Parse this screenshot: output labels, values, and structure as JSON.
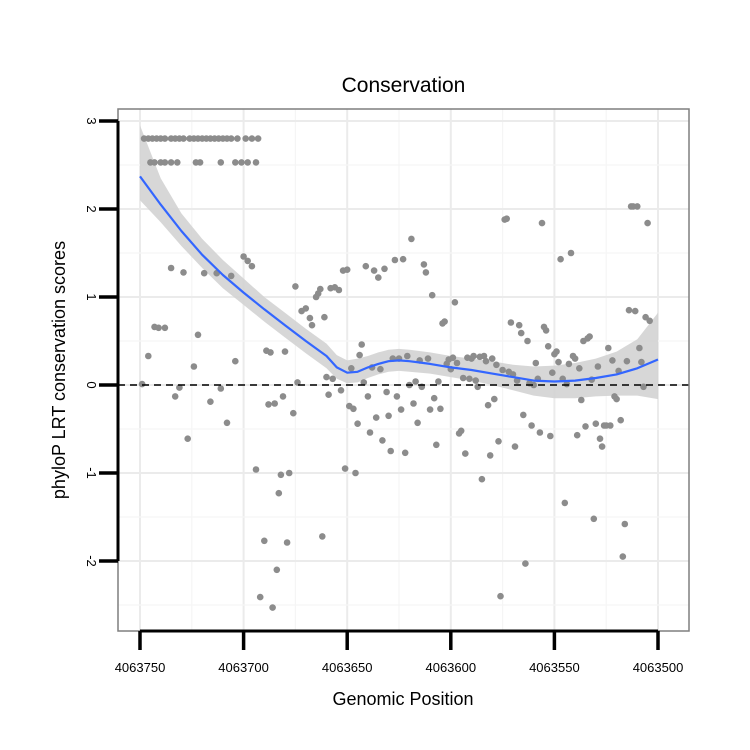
{
  "chart_data": {
    "type": "scatter",
    "title": "Conservation",
    "xlabel": "Genomic Position",
    "ylabel": "phyloP LRT conservation scores",
    "x_reversed": true,
    "xlim": [
      4063500,
      4063750
    ],
    "ylim": [
      -2.6,
      3.1
    ],
    "grid": true,
    "x_ticks": [
      4063750,
      4063700,
      4063650,
      4063600,
      4063550,
      4063500
    ],
    "x_tick_labels": [
      "4063750",
      "4063700",
      "4063650",
      "4063600",
      "4063550",
      "4063500"
    ],
    "y_ticks": [
      3,
      2,
      1,
      0,
      -1,
      -2
    ],
    "y_tick_labels": [
      "3",
      "2",
      "1",
      "0",
      "-1",
      "-2"
    ],
    "reference_line": {
      "y": 0,
      "style": "dashed"
    },
    "colors": {
      "points": "#8c8c8c",
      "smooth": "#3366ff",
      "ribbon": "#d3d3d3",
      "panel_border": "#7f7f7f",
      "grid": "#ebebeb"
    },
    "series": [
      {
        "name": "scores",
        "points": [
          [
            4063748,
            2.8
          ],
          [
            4063746,
            2.8
          ],
          [
            4063744,
            2.8
          ],
          [
            4063742,
            2.8
          ],
          [
            4063740,
            2.8
          ],
          [
            4063738,
            2.8
          ],
          [
            4063735,
            2.8
          ],
          [
            4063733,
            2.8
          ],
          [
            4063731,
            2.8
          ],
          [
            4063729,
            2.8
          ],
          [
            4063726,
            2.8
          ],
          [
            4063724,
            2.8
          ],
          [
            4063722,
            2.8
          ],
          [
            4063720,
            2.8
          ],
          [
            4063718,
            2.8
          ],
          [
            4063716,
            2.8
          ],
          [
            4063714,
            2.8
          ],
          [
            4063712,
            2.8
          ],
          [
            4063710,
            2.8
          ],
          [
            4063708,
            2.8
          ],
          [
            4063706,
            2.8
          ],
          [
            4063703,
            2.8
          ],
          [
            4063699,
            2.8
          ],
          [
            4063696,
            2.8
          ],
          [
            4063693,
            2.8
          ],
          [
            4063745,
            2.53
          ],
          [
            4063743,
            2.53
          ],
          [
            4063740,
            2.53
          ],
          [
            4063738,
            2.53
          ],
          [
            4063735,
            2.53
          ],
          [
            4063732,
            2.53
          ],
          [
            4063723,
            2.53
          ],
          [
            4063721,
            2.53
          ],
          [
            4063711,
            2.53
          ],
          [
            4063704,
            2.53
          ],
          [
            4063701,
            2.53
          ],
          [
            4063698,
            2.53
          ],
          [
            4063694,
            2.53
          ],
          [
            4063749,
            0.01
          ],
          [
            4063746,
            0.33
          ],
          [
            4063743,
            0.66
          ],
          [
            4063741,
            0.65
          ],
          [
            4063738,
            0.65
          ],
          [
            4063735,
            1.33
          ],
          [
            4063733,
            -0.13
          ],
          [
            4063731,
            -0.03
          ],
          [
            4063729,
            1.28
          ],
          [
            4063727,
            -0.61
          ],
          [
            4063724,
            0.21
          ],
          [
            4063722,
            0.57
          ],
          [
            4063719,
            1.27
          ],
          [
            4063716,
            -0.19
          ],
          [
            4063713,
            1.27
          ],
          [
            4063711,
            -0.04
          ],
          [
            4063708,
            -0.43
          ],
          [
            4063706,
            1.24
          ],
          [
            4063704,
            0.27
          ],
          [
            4063700,
            1.46
          ],
          [
            4063698,
            1.41
          ],
          [
            4063696,
            1.35
          ],
          [
            4063694,
            -0.96
          ],
          [
            4063692,
            -2.41
          ],
          [
            4063690,
            -1.77
          ],
          [
            4063689,
            0.39
          ],
          [
            4063688,
            -0.22
          ],
          [
            4063687,
            0.37
          ],
          [
            4063686,
            -2.53
          ],
          [
            4063685,
            -0.21
          ],
          [
            4063684,
            -2.1
          ],
          [
            4063683,
            -1.23
          ],
          [
            4063682,
            -1.02
          ],
          [
            4063681,
            -0.13
          ],
          [
            4063680,
            0.38
          ],
          [
            4063679,
            -1.79
          ],
          [
            4063678,
            -1.0
          ],
          [
            4063676,
            -0.32
          ],
          [
            4063675,
            1.12
          ],
          [
            4063674,
            0.03
          ],
          [
            4063672,
            0.84
          ],
          [
            4063670,
            0.87
          ],
          [
            4063668,
            0.76
          ],
          [
            4063667,
            0.68
          ],
          [
            4063665,
            1.0
          ],
          [
            4063664,
            1.04
          ],
          [
            4063663,
            1.09
          ],
          [
            4063662,
            -1.72
          ],
          [
            4063661,
            0.77
          ],
          [
            4063660,
            0.09
          ],
          [
            4063659,
            -0.11
          ],
          [
            4063658,
            1.1
          ],
          [
            4063657,
            0.07
          ],
          [
            4063656,
            1.11
          ],
          [
            4063654,
            1.08
          ],
          [
            4063653,
            -0.06
          ],
          [
            4063652,
            1.3
          ],
          [
            4063651,
            -0.95
          ],
          [
            4063650,
            1.31
          ],
          [
            4063649,
            -0.24
          ],
          [
            4063648,
            0.19
          ],
          [
            4063647,
            -0.27
          ],
          [
            4063646,
            -1.0
          ],
          [
            4063645,
            -0.44
          ],
          [
            4063644,
            0.34
          ],
          [
            4063643,
            0.46
          ],
          [
            4063642,
            0.03
          ],
          [
            4063641,
            1.35
          ],
          [
            4063640,
            -0.13
          ],
          [
            4063639,
            -0.54
          ],
          [
            4063638,
            0.2
          ],
          [
            4063637,
            1.3
          ],
          [
            4063636,
            -0.37
          ],
          [
            4063635,
            1.22
          ],
          [
            4063634,
            0.18
          ],
          [
            4063633,
            -0.63
          ],
          [
            4063632,
            1.32
          ],
          [
            4063631,
            -0.08
          ],
          [
            4063630,
            -0.35
          ],
          [
            4063629,
            -0.75
          ],
          [
            4063628,
            0.3
          ],
          [
            4063627,
            1.42
          ],
          [
            4063626,
            -0.13
          ],
          [
            4063625,
            0.3
          ],
          [
            4063624,
            -0.28
          ],
          [
            4063623,
            1.43
          ],
          [
            4063622,
            -0.77
          ],
          [
            4063621,
            0.33
          ],
          [
            4063620,
            0.0
          ],
          [
            4063619,
            1.66
          ],
          [
            4063618,
            -0.21
          ],
          [
            4063617,
            0.04
          ],
          [
            4063616,
            -0.43
          ],
          [
            4063615,
            0.28
          ],
          [
            4063614,
            -0.02
          ],
          [
            4063613,
            1.37
          ],
          [
            4063612,
            1.28
          ],
          [
            4063611,
            0.3
          ],
          [
            4063610,
            -0.28
          ],
          [
            4063609,
            1.02
          ],
          [
            4063608,
            -0.15
          ],
          [
            4063607,
            -0.68
          ],
          [
            4063606,
            0.04
          ],
          [
            4063605,
            -0.27
          ],
          [
            4063604,
            0.7
          ],
          [
            4063603,
            0.72
          ],
          [
            4063602,
            0.24
          ],
          [
            4063601,
            0.29
          ],
          [
            4063600,
            0.18
          ],
          [
            4063599,
            0.31
          ],
          [
            4063598,
            0.94
          ],
          [
            4063597,
            0.25
          ],
          [
            4063596,
            -0.55
          ],
          [
            4063595,
            -0.52
          ],
          [
            4063594,
            0.08
          ],
          [
            4063593,
            -0.78
          ],
          [
            4063592,
            0.31
          ],
          [
            4063591,
            0.07
          ],
          [
            4063590,
            0.3
          ],
          [
            4063589,
            0.33
          ],
          [
            4063588,
            0.05
          ],
          [
            4063587,
            -0.02
          ],
          [
            4063586,
            0.32
          ],
          [
            4063585,
            -1.07
          ],
          [
            4063584,
            0.33
          ],
          [
            4063583,
            0.27
          ],
          [
            4063582,
            -0.23
          ],
          [
            4063581,
            -0.8
          ],
          [
            4063580,
            0.3
          ],
          [
            4063579,
            -0.16
          ],
          [
            4063578,
            0.23
          ],
          [
            4063577,
            -0.64
          ],
          [
            4063576,
            -2.4
          ],
          [
            4063575,
            0.17
          ],
          [
            4063574,
            1.88
          ],
          [
            4063573,
            1.89
          ],
          [
            4063572,
            0.15
          ],
          [
            4063571,
            0.71
          ],
          [
            4063570,
            0.12
          ],
          [
            4063569,
            -0.7
          ],
          [
            4063568,
            0.05
          ],
          [
            4063567,
            0.68
          ],
          [
            4063566,
            0.59
          ],
          [
            4063565,
            -0.34
          ],
          [
            4063564,
            -2.03
          ],
          [
            4063563,
            0.5
          ],
          [
            4063562,
            0.02
          ],
          [
            4063561,
            -0.46
          ],
          [
            4063560,
            0.0
          ],
          [
            4063559,
            0.25
          ],
          [
            4063558,
            0.07
          ],
          [
            4063557,
            -0.54
          ],
          [
            4063556,
            1.84
          ],
          [
            4063555,
            0.66
          ],
          [
            4063554,
            0.62
          ],
          [
            4063553,
            0.44
          ],
          [
            4063552,
            -0.58
          ],
          [
            4063551,
            0.14
          ],
          [
            4063550,
            0.35
          ],
          [
            4063549,
            0.38
          ],
          [
            4063548,
            0.26
          ],
          [
            4063547,
            1.43
          ],
          [
            4063546,
            0.07
          ],
          [
            4063545,
            -1.34
          ],
          [
            4063544,
            0.01
          ],
          [
            4063543,
            0.24
          ],
          [
            4063542,
            1.5
          ],
          [
            4063541,
            0.33
          ],
          [
            4063540,
            0.3
          ],
          [
            4063539,
            -0.57
          ],
          [
            4063538,
            0.19
          ],
          [
            4063537,
            -0.17
          ],
          [
            4063536,
            0.5
          ],
          [
            4063535,
            -0.47
          ],
          [
            4063534,
            0.53
          ],
          [
            4063533,
            0.55
          ],
          [
            4063532,
            0.06
          ],
          [
            4063531,
            -1.52
          ],
          [
            4063530,
            -0.44
          ],
          [
            4063529,
            0.21
          ],
          [
            4063528,
            -0.61
          ],
          [
            4063527,
            -0.7
          ],
          [
            4063526,
            -0.46
          ],
          [
            4063525,
            -0.46
          ],
          [
            4063524,
            0.42
          ],
          [
            4063523,
            -0.46
          ],
          [
            4063522,
            0.28
          ],
          [
            4063521,
            -0.13
          ],
          [
            4063520,
            -0.16
          ],
          [
            4063519,
            0.16
          ],
          [
            4063518,
            -0.4
          ],
          [
            4063517,
            -1.95
          ],
          [
            4063516,
            -1.58
          ],
          [
            4063515,
            0.27
          ],
          [
            4063514,
            0.85
          ],
          [
            4063513,
            2.03
          ],
          [
            4063512,
            2.03
          ],
          [
            4063511,
            0.84
          ],
          [
            4063510,
            2.03
          ],
          [
            4063509,
            0.42
          ],
          [
            4063508,
            0.26
          ],
          [
            4063507,
            -0.02
          ],
          [
            4063506,
            0.77
          ],
          [
            4063505,
            1.84
          ],
          [
            4063504,
            0.73
          ]
        ]
      }
    ],
    "smooth": {
      "method": "loess",
      "x": [
        4063750,
        4063740,
        4063730,
        4063720,
        4063710,
        4063700,
        4063690,
        4063680,
        4063670,
        4063660,
        4063655,
        4063650,
        4063645,
        4063640,
        4063635,
        4063630,
        4063625,
        4063620,
        4063610,
        4063600,
        4063590,
        4063580,
        4063570,
        4063560,
        4063550,
        4063540,
        4063530,
        4063520,
        4063510,
        4063500
      ],
      "y": [
        2.37,
        2.05,
        1.75,
        1.48,
        1.25,
        1.05,
        0.86,
        0.68,
        0.5,
        0.33,
        0.2,
        0.14,
        0.15,
        0.2,
        0.24,
        0.27,
        0.28,
        0.27,
        0.24,
        0.2,
        0.17,
        0.13,
        0.09,
        0.05,
        0.04,
        0.05,
        0.08,
        0.12,
        0.19,
        0.29
      ],
      "ymin": [
        2.1,
        1.85,
        1.58,
        1.33,
        1.1,
        0.91,
        0.72,
        0.54,
        0.36,
        0.19,
        0.07,
        0.02,
        0.03,
        0.08,
        0.12,
        0.15,
        0.16,
        0.15,
        0.13,
        0.09,
        0.05,
        0.0,
        -0.06,
        -0.12,
        -0.15,
        -0.15,
        -0.13,
        -0.12,
        -0.12,
        -0.16
      ],
      "ymax": [
        2.95,
        2.35,
        1.95,
        1.66,
        1.42,
        1.21,
        1.0,
        0.82,
        0.64,
        0.47,
        0.34,
        0.28,
        0.3,
        0.33,
        0.37,
        0.4,
        0.41,
        0.4,
        0.37,
        0.33,
        0.3,
        0.27,
        0.23,
        0.21,
        0.22,
        0.25,
        0.3,
        0.38,
        0.52,
        0.82
      ]
    }
  }
}
